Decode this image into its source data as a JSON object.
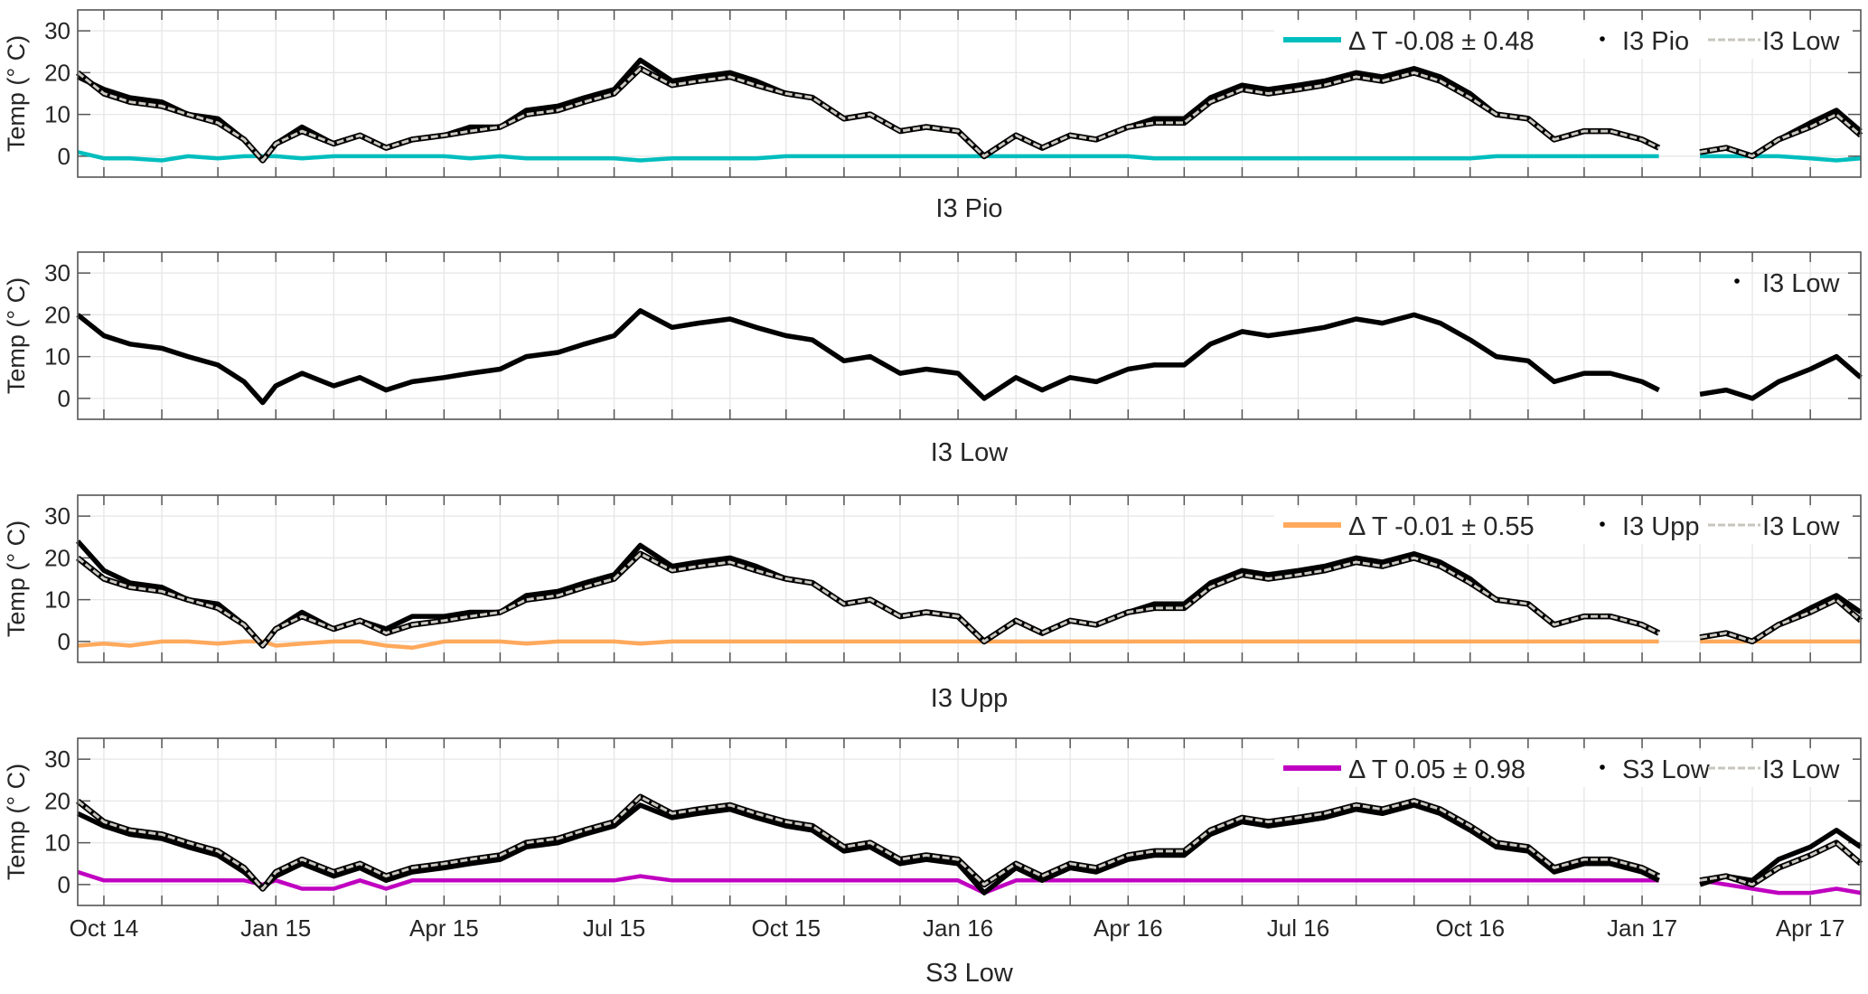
{
  "chart_data": [
    {
      "type": "line",
      "title": "",
      "xlabel": "I3 Pio",
      "ylabel": "Temp (° C)",
      "ylim": [
        -5,
        35
      ],
      "yticks": [
        "0",
        "10",
        "20",
        "30"
      ],
      "grid": true,
      "legend_position": "top-right",
      "series_keys": [
        "delta",
        "measured",
        "reference"
      ],
      "legend": [
        {
          "key": "delta",
          "label": "Δ T -0.08 ± 0.48",
          "style": "line",
          "color": "#00BEBE"
        },
        {
          "key": "measured",
          "label": "I3 Pio",
          "style": "dot",
          "color": "#000000"
        },
        {
          "key": "reference",
          "label": "I3 Low",
          "style": "dashed",
          "color": "#C8C5BE"
        }
      ],
      "series": {
        "measured": [
          19,
          16,
          14,
          13,
          10,
          9,
          4,
          -1,
          3,
          7,
          3,
          5,
          2,
          4,
          5,
          7,
          7,
          11,
          12,
          14,
          16,
          23,
          18,
          19,
          20,
          18,
          15,
          14,
          9,
          10,
          6,
          7,
          6,
          0,
          5,
          2,
          5,
          4,
          7,
          9,
          9,
          14,
          17,
          16,
          17,
          18,
          20,
          19,
          21,
          19,
          15,
          10,
          9,
          4,
          6,
          6,
          4,
          2,
          null,
          1,
          2,
          0,
          4,
          8,
          11,
          6
        ],
        "reference": [
          20,
          15,
          13,
          12,
          10,
          8,
          4,
          -1,
          3,
          6,
          3,
          5,
          2,
          4,
          5,
          6,
          7,
          10,
          11,
          13,
          15,
          21,
          17,
          18,
          19,
          17,
          15,
          14,
          9,
          10,
          6,
          7,
          6,
          0,
          5,
          2,
          5,
          4,
          7,
          8,
          8,
          13,
          16,
          15,
          16,
          17,
          19,
          18,
          20,
          18,
          14,
          10,
          9,
          4,
          6,
          6,
          4,
          2,
          null,
          1,
          2,
          0,
          4,
          7,
          10,
          5
        ],
        "delta": [
          1,
          -0.5,
          -0.5,
          -1,
          0,
          -0.5,
          0,
          0,
          0,
          -0.5,
          0,
          0,
          0,
          0,
          0,
          -0.5,
          0,
          -0.5,
          -0.5,
          -0.5,
          -0.5,
          -1,
          -0.5,
          -0.5,
          -0.5,
          -0.5,
          0,
          0,
          0,
          0,
          0,
          0,
          0,
          0,
          0,
          0,
          0,
          0,
          0,
          -0.5,
          -0.5,
          -0.5,
          -0.5,
          -0.5,
          -0.5,
          -0.5,
          -0.5,
          -0.5,
          -0.5,
          -0.5,
          -0.5,
          0,
          0,
          0,
          0,
          0,
          0,
          0,
          null,
          0,
          0,
          0,
          0,
          -0.5,
          -1,
          -0.5
        ]
      }
    },
    {
      "type": "line",
      "title": "",
      "xlabel": "I3 Low",
      "ylabel": "Temp (° C)",
      "ylim": [
        -5,
        35
      ],
      "yticks": [
        "0",
        "10",
        "20",
        "30"
      ],
      "grid": true,
      "legend_position": "top-right",
      "series_keys": [
        "measured"
      ],
      "legend": [
        {
          "key": "measured",
          "label": "I3 Low",
          "style": "dot",
          "color": "#000000"
        }
      ],
      "series": {
        "measured": [
          20,
          15,
          13,
          12,
          10,
          8,
          4,
          -1,
          3,
          6,
          3,
          5,
          2,
          4,
          5,
          6,
          7,
          10,
          11,
          13,
          15,
          21,
          17,
          18,
          19,
          17,
          15,
          14,
          9,
          10,
          6,
          7,
          6,
          0,
          5,
          2,
          5,
          4,
          7,
          8,
          8,
          13,
          16,
          15,
          16,
          17,
          19,
          18,
          20,
          18,
          14,
          10,
          9,
          4,
          6,
          6,
          4,
          2,
          null,
          1,
          2,
          0,
          4,
          7,
          10,
          5
        ]
      }
    },
    {
      "type": "line",
      "title": "",
      "xlabel": "I3 Upp",
      "ylabel": "Temp (° C)",
      "ylim": [
        -5,
        35
      ],
      "yticks": [
        "0",
        "10",
        "20",
        "30"
      ],
      "grid": true,
      "legend_position": "top-right",
      "series_keys": [
        "delta",
        "measured",
        "reference"
      ],
      "legend": [
        {
          "key": "delta",
          "label": "Δ T -0.01 ± 0.55",
          "style": "line",
          "color": "#FFA95C"
        },
        {
          "key": "measured",
          "label": "I3 Upp",
          "style": "dot",
          "color": "#000000"
        },
        {
          "key": "reference",
          "label": "I3 Low",
          "style": "dashed",
          "color": "#C8C5BE"
        }
      ],
      "series": {
        "measured": [
          24,
          17,
          14,
          13,
          10,
          9,
          4,
          -1,
          3,
          7,
          3,
          5,
          3,
          6,
          6,
          7,
          7,
          11,
          12,
          14,
          16,
          23,
          18,
          19,
          20,
          18,
          15,
          14,
          9,
          10,
          6,
          7,
          6,
          0,
          5,
          2,
          5,
          4,
          7,
          9,
          9,
          14,
          17,
          16,
          17,
          18,
          20,
          19,
          21,
          19,
          15,
          10,
          9,
          4,
          6,
          6,
          4,
          2,
          null,
          1,
          2,
          0,
          4,
          8,
          11,
          7
        ],
        "reference": [
          20,
          15,
          13,
          12,
          10,
          8,
          4,
          -1,
          3,
          6,
          3,
          5,
          2,
          4,
          5,
          6,
          7,
          10,
          11,
          13,
          15,
          21,
          17,
          18,
          19,
          17,
          15,
          14,
          9,
          10,
          6,
          7,
          6,
          0,
          5,
          2,
          5,
          4,
          7,
          8,
          8,
          13,
          16,
          15,
          16,
          17,
          19,
          18,
          20,
          18,
          14,
          10,
          9,
          4,
          6,
          6,
          4,
          2,
          null,
          1,
          2,
          0,
          4,
          7,
          10,
          5
        ],
        "delta": [
          -1,
          -0.5,
          -1,
          0,
          0,
          -0.5,
          0,
          0,
          -1,
          -0.5,
          0,
          0,
          -1,
          -1.5,
          0,
          0,
          0,
          -0.5,
          0,
          0,
          0,
          -0.5,
          0,
          0,
          0,
          0,
          0,
          0,
          0,
          0,
          0,
          0,
          0,
          0,
          0,
          0,
          0,
          0,
          0,
          0,
          0,
          0,
          0,
          0,
          0,
          0,
          0,
          0,
          0,
          0,
          0,
          0,
          0,
          0,
          0,
          0,
          0,
          0,
          null,
          0,
          0,
          0,
          0,
          0,
          0,
          0
        ]
      }
    },
    {
      "type": "line",
      "title": "",
      "xlabel": "S3 Low",
      "ylabel": "Temp (° C)",
      "ylim": [
        -5,
        35
      ],
      "yticks": [
        "0",
        "10",
        "20",
        "30"
      ],
      "xticks": [
        "Oct 14",
        "Jan 15",
        "Apr 15",
        "Jul 15",
        "Oct 15",
        "Jan 16",
        "Apr 16",
        "Jul 16",
        "Oct 16",
        "Jan 17",
        "Apr 17"
      ],
      "grid": true,
      "legend_position": "top-right",
      "series_keys": [
        "delta",
        "measured",
        "reference"
      ],
      "legend": [
        {
          "key": "delta",
          "label": "Δ T 0.05 ± 0.98",
          "style": "line",
          "color": "#C000C0"
        },
        {
          "key": "measured",
          "label": "S3 Low",
          "style": "dot",
          "color": "#000000"
        },
        {
          "key": "reference",
          "label": "I3 Low",
          "style": "dashed",
          "color": "#C8C5BE"
        }
      ],
      "series": {
        "measured": [
          17,
          14,
          12,
          11,
          9,
          7,
          3,
          -1,
          2,
          5,
          2,
          4,
          1,
          3,
          4,
          5,
          6,
          9,
          10,
          12,
          14,
          19,
          16,
          17,
          18,
          16,
          14,
          13,
          8,
          9,
          5,
          6,
          5,
          -2,
          4,
          1,
          4,
          3,
          6,
          7,
          7,
          12,
          15,
          14,
          15,
          16,
          18,
          17,
          19,
          17,
          13,
          9,
          8,
          3,
          5,
          5,
          3,
          1,
          null,
          0,
          2,
          1,
          6,
          9,
          13,
          9
        ],
        "reference": [
          20,
          15,
          13,
          12,
          10,
          8,
          4,
          -1,
          3,
          6,
          3,
          5,
          2,
          4,
          5,
          6,
          7,
          10,
          11,
          13,
          15,
          21,
          17,
          18,
          19,
          17,
          15,
          14,
          9,
          10,
          6,
          7,
          6,
          0,
          5,
          2,
          5,
          4,
          7,
          8,
          8,
          13,
          16,
          15,
          16,
          17,
          19,
          18,
          20,
          18,
          14,
          10,
          9,
          4,
          6,
          6,
          4,
          2,
          null,
          1,
          2,
          0,
          4,
          7,
          10,
          5
        ],
        "delta": [
          3,
          1,
          1,
          1,
          1,
          1,
          1,
          0,
          1,
          -1,
          -1,
          1,
          -1,
          1,
          1,
          1,
          1,
          1,
          1,
          1,
          1,
          2,
          1,
          1,
          1,
          1,
          1,
          1,
          1,
          1,
          1,
          1,
          1,
          -2,
          1,
          1,
          1,
          1,
          1,
          1,
          1,
          1,
          1,
          1,
          1,
          1,
          1,
          1,
          1,
          1,
          1,
          1,
          1,
          1,
          1,
          1,
          1,
          1,
          null,
          1,
          0,
          -1,
          -2,
          -2,
          -1,
          -2
        ]
      }
    }
  ],
  "x_dates": [
    "2014-09-17",
    "2014-10-01",
    "2014-10-15",
    "2014-11-01",
    "2014-11-15",
    "2014-12-01",
    "2014-12-15",
    "2014-12-25",
    "2015-01-01",
    "2015-01-15",
    "2015-02-01",
    "2015-02-15",
    "2015-03-01",
    "2015-03-15",
    "2015-04-01",
    "2015-04-15",
    "2015-05-01",
    "2015-05-15",
    "2015-06-01",
    "2015-06-15",
    "2015-07-01",
    "2015-07-15",
    "2015-08-01",
    "2015-08-15",
    "2015-09-01",
    "2015-09-15",
    "2015-10-01",
    "2015-10-15",
    "2015-11-01",
    "2015-11-15",
    "2015-12-01",
    "2015-12-15",
    "2016-01-01",
    "2016-01-15",
    "2016-02-01",
    "2016-02-15",
    "2016-03-01",
    "2016-03-15",
    "2016-04-01",
    "2016-04-15",
    "2016-05-01",
    "2016-05-15",
    "2016-06-01",
    "2016-06-15",
    "2016-07-01",
    "2016-07-15",
    "2016-08-01",
    "2016-08-15",
    "2016-09-01",
    "2016-09-15",
    "2016-10-01",
    "2016-10-15",
    "2016-11-01",
    "2016-11-15",
    "2016-12-01",
    "2016-12-15",
    "2017-01-01",
    "2017-01-10",
    "2017-01-20",
    "2017-02-01",
    "2017-02-15",
    "2017-03-01",
    "2017-03-15",
    "2017-04-01",
    "2017-04-15",
    "2017-04-28"
  ],
  "x_range": [
    "2014-09-17",
    "2017-04-28"
  ],
  "xtick_dates": [
    "2014-10-01",
    "2015-01-01",
    "2015-04-01",
    "2015-07-01",
    "2015-10-01",
    "2016-01-01",
    "2016-04-01",
    "2016-07-01",
    "2016-10-01",
    "2017-01-01",
    "2017-04-01"
  ]
}
